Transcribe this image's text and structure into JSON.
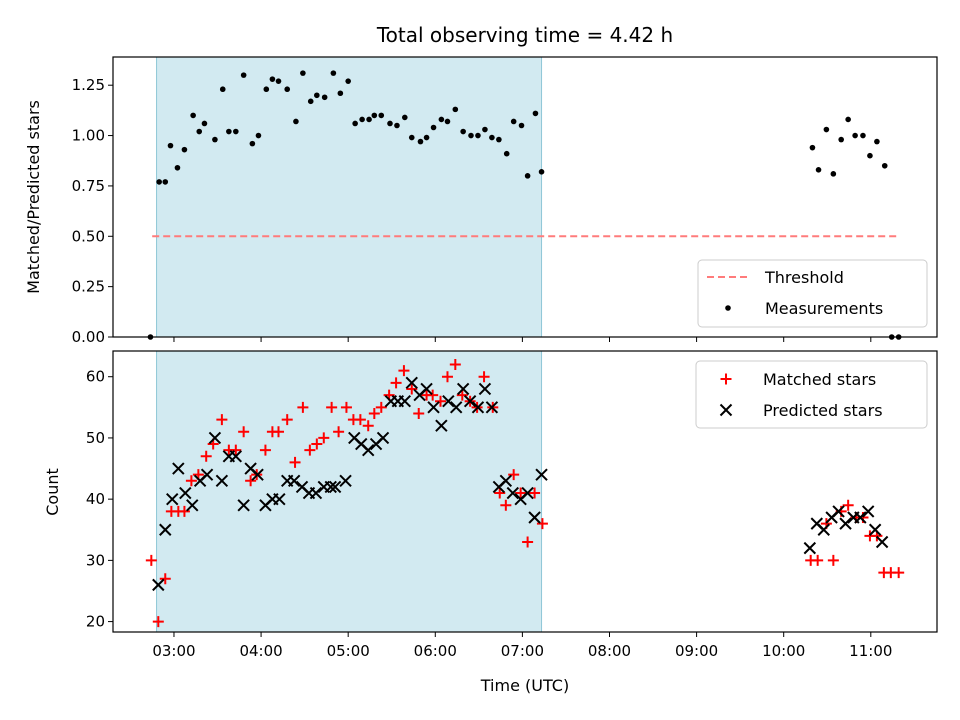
{
  "chart_data": {
    "title": "Total observing time = 4.42 h",
    "xlabel": "Time (UTC)",
    "x_unit": "hours UTC",
    "xlim": [
      2.3,
      11.76
    ],
    "x_ticks": [
      {
        "value": 3,
        "label": "03:00"
      },
      {
        "value": 4,
        "label": "04:00"
      },
      {
        "value": 5,
        "label": "05:00"
      },
      {
        "value": 6,
        "label": "06:00"
      },
      {
        "value": 7,
        "label": "07:00"
      },
      {
        "value": 8,
        "label": "08:00"
      },
      {
        "value": 9,
        "label": "09:00"
      },
      {
        "value": 10,
        "label": "10:00"
      },
      {
        "value": 11,
        "label": "11:00"
      }
    ],
    "shaded_span": [
      2.8,
      7.22
    ],
    "colors": {
      "shade": "#add8e6",
      "threshold": "#ff7b7b",
      "matched": "#ff0000",
      "predicted": "#000000",
      "measurement": "#000000"
    },
    "top": {
      "type": "scatter",
      "ylabel": "Matched/Predicted stars",
      "ylim": [
        0.0,
        1.39
      ],
      "y_ticks": [
        {
          "value": 0.0,
          "label": "0.00"
        },
        {
          "value": 0.25,
          "label": "0.25"
        },
        {
          "value": 0.5,
          "label": "0.50"
        },
        {
          "value": 0.75,
          "label": "0.75"
        },
        {
          "value": 1.0,
          "label": "1.00"
        },
        {
          "value": 1.25,
          "label": "1.25"
        }
      ],
      "threshold": {
        "value": 0.5,
        "x_range": [
          2.75,
          11.3
        ],
        "name": "Threshold"
      },
      "legend": {
        "position": "lower right",
        "entries": [
          "Threshold",
          "Measurements"
        ]
      },
      "measurements": {
        "name": "Measurements",
        "points": [
          [
            2.73,
            0.0
          ],
          [
            2.83,
            0.77
          ],
          [
            2.9,
            0.77
          ],
          [
            2.96,
            0.95
          ],
          [
            3.04,
            0.84
          ],
          [
            3.12,
            0.93
          ],
          [
            3.22,
            1.1
          ],
          [
            3.29,
            1.02
          ],
          [
            3.35,
            1.06
          ],
          [
            3.47,
            0.98
          ],
          [
            3.56,
            1.23
          ],
          [
            3.63,
            1.02
          ],
          [
            3.71,
            1.02
          ],
          [
            3.8,
            1.3
          ],
          [
            3.9,
            0.96
          ],
          [
            3.97,
            1.0
          ],
          [
            4.06,
            1.23
          ],
          [
            4.13,
            1.28
          ],
          [
            4.2,
            1.27
          ],
          [
            4.3,
            1.23
          ],
          [
            4.4,
            1.07
          ],
          [
            4.48,
            1.31
          ],
          [
            4.57,
            1.17
          ],
          [
            4.64,
            1.2
          ],
          [
            4.73,
            1.19
          ],
          [
            4.83,
            1.31
          ],
          [
            4.91,
            1.21
          ],
          [
            5.0,
            1.27
          ],
          [
            5.08,
            1.06
          ],
          [
            5.16,
            1.08
          ],
          [
            5.24,
            1.08
          ],
          [
            5.3,
            1.1
          ],
          [
            5.38,
            1.1
          ],
          [
            5.48,
            1.06
          ],
          [
            5.56,
            1.05
          ],
          [
            5.65,
            1.09
          ],
          [
            5.73,
            0.99
          ],
          [
            5.83,
            0.97
          ],
          [
            5.9,
            0.99
          ],
          [
            5.98,
            1.04
          ],
          [
            6.07,
            1.08
          ],
          [
            6.14,
            1.07
          ],
          [
            6.23,
            1.13
          ],
          [
            6.32,
            1.02
          ],
          [
            6.41,
            1.0
          ],
          [
            6.49,
            1.0
          ],
          [
            6.57,
            1.03
          ],
          [
            6.65,
            0.99
          ],
          [
            6.73,
            0.98
          ],
          [
            6.82,
            0.91
          ],
          [
            6.9,
            1.07
          ],
          [
            6.99,
            1.05
          ],
          [
            7.06,
            0.8
          ],
          [
            7.15,
            1.11
          ],
          [
            7.22,
            0.82
          ],
          [
            10.33,
            0.94
          ],
          [
            10.4,
            0.83
          ],
          [
            10.49,
            1.03
          ],
          [
            10.57,
            0.81
          ],
          [
            10.66,
            0.98
          ],
          [
            10.74,
            1.08
          ],
          [
            10.82,
            1.0
          ],
          [
            10.91,
            1.0
          ],
          [
            10.99,
            0.9
          ],
          [
            11.07,
            0.97
          ],
          [
            11.16,
            0.85
          ],
          [
            11.24,
            0.0
          ],
          [
            11.32,
            0.0
          ]
        ]
      }
    },
    "bottom": {
      "type": "scatter",
      "ylabel": "Count",
      "ylim": [
        18.3,
        64.2
      ],
      "y_ticks": [
        {
          "value": 20,
          "label": "20"
        },
        {
          "value": 30,
          "label": "30"
        },
        {
          "value": 40,
          "label": "40"
        },
        {
          "value": 50,
          "label": "50"
        },
        {
          "value": 60,
          "label": "60"
        }
      ],
      "legend": {
        "position": "upper right",
        "entries": [
          "Matched stars",
          "Predicted stars"
        ]
      },
      "series": [
        {
          "name": "Matched stars",
          "marker": "plus",
          "points": [
            [
              2.74,
              30
            ],
            [
              2.82,
              20
            ],
            [
              2.9,
              27
            ],
            [
              2.97,
              38
            ],
            [
              3.05,
              38
            ],
            [
              3.12,
              38
            ],
            [
              3.2,
              43
            ],
            [
              3.28,
              44
            ],
            [
              3.37,
              47
            ],
            [
              3.45,
              49
            ],
            [
              3.55,
              53
            ],
            [
              3.63,
              48
            ],
            [
              3.71,
              48
            ],
            [
              3.8,
              51
            ],
            [
              3.88,
              43
            ],
            [
              3.95,
              44
            ],
            [
              4.05,
              48
            ],
            [
              4.13,
              51
            ],
            [
              4.2,
              51
            ],
            [
              4.3,
              53
            ],
            [
              4.39,
              46
            ],
            [
              4.48,
              55
            ],
            [
              4.56,
              48
            ],
            [
              4.64,
              49
            ],
            [
              4.72,
              50
            ],
            [
              4.81,
              55
            ],
            [
              4.89,
              51
            ],
            [
              4.98,
              55
            ],
            [
              5.06,
              53
            ],
            [
              5.14,
              53
            ],
            [
              5.23,
              52
            ],
            [
              5.3,
              54
            ],
            [
              5.38,
              55
            ],
            [
              5.47,
              57
            ],
            [
              5.55,
              59
            ],
            [
              5.64,
              61
            ],
            [
              5.73,
              58
            ],
            [
              5.81,
              54
            ],
            [
              5.9,
              57
            ],
            [
              5.97,
              57
            ],
            [
              6.06,
              56
            ],
            [
              6.14,
              60
            ],
            [
              6.23,
              62
            ],
            [
              6.31,
              57
            ],
            [
              6.4,
              56
            ],
            [
              6.48,
              55
            ],
            [
              6.56,
              60
            ],
            [
              6.66,
              55
            ],
            [
              6.74,
              41
            ],
            [
              6.81,
              39
            ],
            [
              6.9,
              44
            ],
            [
              6.98,
              41
            ],
            [
              7.06,
              33
            ],
            [
              7.14,
              41
            ],
            [
              7.23,
              36
            ],
            [
              10.31,
              30
            ],
            [
              10.39,
              30
            ],
            [
              10.49,
              36
            ],
            [
              10.57,
              30
            ],
            [
              10.66,
              38
            ],
            [
              10.74,
              39
            ],
            [
              10.83,
              37
            ],
            [
              10.91,
              37
            ],
            [
              10.99,
              34
            ],
            [
              11.07,
              34
            ],
            [
              11.15,
              28
            ],
            [
              11.23,
              28
            ],
            [
              11.32,
              28
            ]
          ]
        },
        {
          "name": "Predicted stars",
          "marker": "x",
          "points": [
            [
              2.82,
              26
            ],
            [
              2.9,
              35
            ],
            [
              2.98,
              40
            ],
            [
              3.05,
              45
            ],
            [
              3.13,
              41
            ],
            [
              3.21,
              39
            ],
            [
              3.3,
              43
            ],
            [
              3.38,
              44
            ],
            [
              3.47,
              50
            ],
            [
              3.55,
              43
            ],
            [
              3.63,
              47
            ],
            [
              3.71,
              47
            ],
            [
              3.8,
              39
            ],
            [
              3.88,
              45
            ],
            [
              3.96,
              44
            ],
            [
              4.05,
              39
            ],
            [
              4.13,
              40
            ],
            [
              4.21,
              40
            ],
            [
              4.3,
              43
            ],
            [
              4.38,
              43
            ],
            [
              4.47,
              42
            ],
            [
              4.55,
              41
            ],
            [
              4.63,
              41
            ],
            [
              4.72,
              42
            ],
            [
              4.8,
              42
            ],
            [
              4.85,
              42
            ],
            [
              4.97,
              43
            ],
            [
              5.07,
              50
            ],
            [
              5.15,
              49
            ],
            [
              5.23,
              48
            ],
            [
              5.32,
              49
            ],
            [
              5.4,
              50
            ],
            [
              5.49,
              56
            ],
            [
              5.57,
              56
            ],
            [
              5.65,
              56
            ],
            [
              5.73,
              59
            ],
            [
              5.82,
              57
            ],
            [
              5.9,
              58
            ],
            [
              5.98,
              55
            ],
            [
              6.07,
              52
            ],
            [
              6.15,
              56
            ],
            [
              6.24,
              55
            ],
            [
              6.32,
              58
            ],
            [
              6.4,
              56
            ],
            [
              6.49,
              55
            ],
            [
              6.57,
              58
            ],
            [
              6.65,
              55
            ],
            [
              6.73,
              42
            ],
            [
              6.81,
              43
            ],
            [
              6.89,
              41
            ],
            [
              6.98,
              40
            ],
            [
              7.06,
              41
            ],
            [
              7.14,
              37
            ],
            [
              7.22,
              44
            ],
            [
              10.3,
              32
            ],
            [
              10.38,
              36
            ],
            [
              10.46,
              35
            ],
            [
              10.55,
              37
            ],
            [
              10.63,
              38
            ],
            [
              10.71,
              36
            ],
            [
              10.8,
              37
            ],
            [
              10.88,
              37
            ],
            [
              10.97,
              38
            ],
            [
              11.05,
              35
            ],
            [
              11.13,
              33
            ]
          ]
        }
      ]
    }
  }
}
